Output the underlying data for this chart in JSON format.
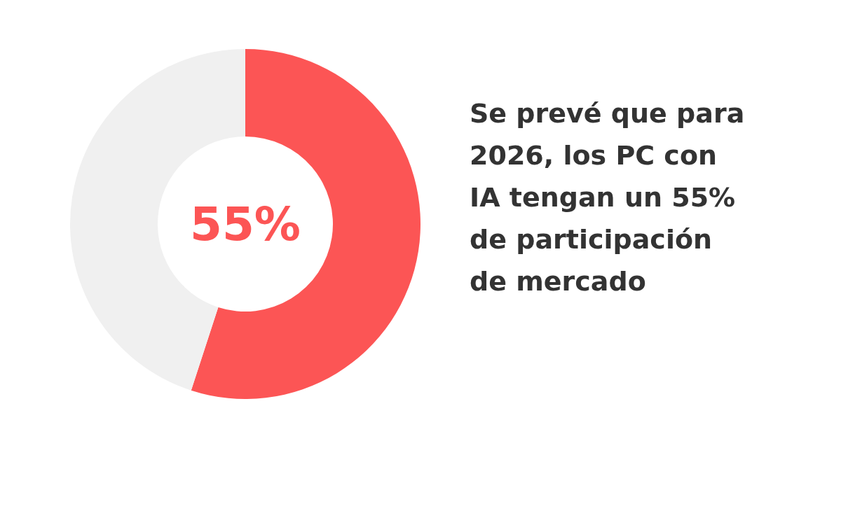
{
  "chart_data": {
    "type": "donut",
    "title": "Se prevé que para 2026, los PC con IA tengan un 55% de participación de mercado",
    "categories": [
      null,
      null
    ],
    "values": [
      55,
      45
    ],
    "colors": [
      "#fc5555",
      "#f0f0f0"
    ],
    "value_labels": [
      "55%",
      null
    ]
  }
}
